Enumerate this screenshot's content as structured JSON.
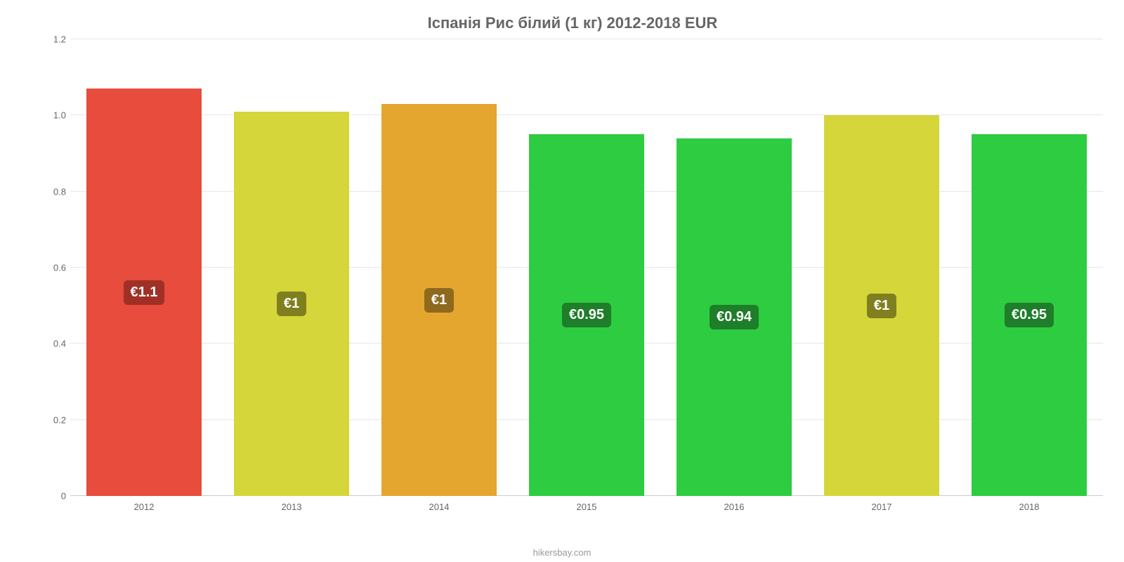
{
  "chart": {
    "type": "bar",
    "title": "Іспанія Рис білий (1 кг) 2012-2018 EUR",
    "title_fontsize": 22,
    "title_color": "#666666",
    "background_color": "#ffffff",
    "grid_color": "#e6e6e6",
    "baseline_color": "#cccccc",
    "axis_label_color": "#666666",
    "axis_label_fontsize": 13,
    "ylim": [
      0,
      1.2
    ],
    "yticks": [
      0,
      0.2,
      0.4,
      0.6,
      0.8,
      1.0,
      1.2
    ],
    "ytick_labels": [
      "0",
      "0.2",
      "0.4",
      "0.6",
      "0.8",
      "1.0",
      "1.2"
    ],
    "categories": [
      "2012",
      "2013",
      "2014",
      "2015",
      "2016",
      "2017",
      "2018"
    ],
    "values": [
      1.07,
      1.01,
      1.03,
      0.95,
      0.94,
      1.0,
      0.95
    ],
    "value_labels": [
      "€1.1",
      "€1",
      "€1",
      "€0.95",
      "€0.94",
      "€1",
      "€0.95"
    ],
    "bar_colors": [
      "#e74c3c",
      "#d4d639",
      "#e4a62e",
      "#2ecc40",
      "#2ecc40",
      "#d4d639",
      "#2ecc40"
    ],
    "badge_colors": [
      "#a03026",
      "#7f7f1f",
      "#8f6a1e",
      "#1e7e2a",
      "#1e7e2a",
      "#7f7f1f",
      "#1e7e2a"
    ],
    "bar_width_pct": 78,
    "value_badge_fontsize": 20,
    "credit": "hikersbay.com",
    "credit_color": "#999999"
  }
}
